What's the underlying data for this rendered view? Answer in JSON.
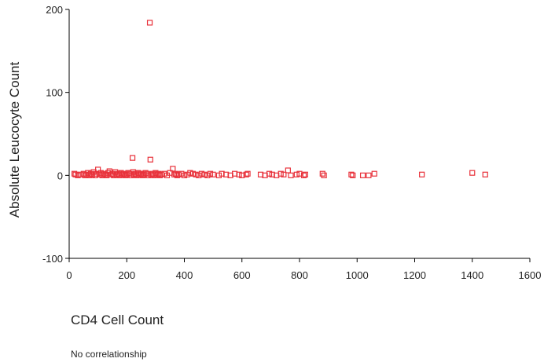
{
  "chart_data": {
    "type": "scatter",
    "title": "",
    "xlabel": "CD4 Cell Count",
    "ylabel": "Absolute Leucocyte Count",
    "xlim": [
      0,
      1600
    ],
    "ylim": [
      -100,
      200
    ],
    "xticks": [
      0,
      200,
      400,
      600,
      800,
      1000,
      1200,
      1400,
      1600
    ],
    "yticks": [
      -100,
      0,
      100,
      200
    ],
    "grid": false,
    "marker": "hollow-square",
    "color": "#e8313a",
    "points": [
      [
        18,
        2
      ],
      [
        22,
        1
      ],
      [
        30,
        0
      ],
      [
        40,
        1
      ],
      [
        50,
        2
      ],
      [
        55,
        0
      ],
      [
        60,
        1
      ],
      [
        65,
        3
      ],
      [
        70,
        0
      ],
      [
        75,
        2
      ],
      [
        80,
        1
      ],
      [
        85,
        4
      ],
      [
        90,
        0
      ],
      [
        95,
        2
      ],
      [
        100,
        7
      ],
      [
        105,
        1
      ],
      [
        110,
        3
      ],
      [
        115,
        0
      ],
      [
        120,
        2
      ],
      [
        125,
        1
      ],
      [
        130,
        0
      ],
      [
        135,
        3
      ],
      [
        140,
        5
      ],
      [
        145,
        1
      ],
      [
        150,
        2
      ],
      [
        155,
        0
      ],
      [
        160,
        4
      ],
      [
        165,
        1
      ],
      [
        170,
        2
      ],
      [
        175,
        0
      ],
      [
        180,
        3
      ],
      [
        185,
        1
      ],
      [
        190,
        2
      ],
      [
        195,
        0
      ],
      [
        200,
        1
      ],
      [
        205,
        3
      ],
      [
        210,
        2
      ],
      [
        215,
        0
      ],
      [
        220,
        21
      ],
      [
        222,
        4
      ],
      [
        225,
        1
      ],
      [
        230,
        2
      ],
      [
        235,
        0
      ],
      [
        240,
        3
      ],
      [
        245,
        1
      ],
      [
        250,
        2
      ],
      [
        255,
        0
      ],
      [
        260,
        1
      ],
      [
        265,
        3
      ],
      [
        270,
        2
      ],
      [
        275,
        0
      ],
      [
        280,
        184
      ],
      [
        282,
        19
      ],
      [
        285,
        1
      ],
      [
        290,
        2
      ],
      [
        295,
        0
      ],
      [
        300,
        3
      ],
      [
        305,
        1
      ],
      [
        310,
        2
      ],
      [
        315,
        0
      ],
      [
        320,
        1
      ],
      [
        330,
        2
      ],
      [
        340,
        0
      ],
      [
        350,
        3
      ],
      [
        360,
        8
      ],
      [
        365,
        1
      ],
      [
        370,
        2
      ],
      [
        375,
        0
      ],
      [
        380,
        1
      ],
      [
        390,
        2
      ],
      [
        400,
        0
      ],
      [
        410,
        1
      ],
      [
        420,
        3
      ],
      [
        430,
        2
      ],
      [
        440,
        1
      ],
      [
        450,
        0
      ],
      [
        460,
        2
      ],
      [
        470,
        1
      ],
      [
        480,
        0
      ],
      [
        490,
        2
      ],
      [
        500,
        1
      ],
      [
        520,
        0
      ],
      [
        530,
        2
      ],
      [
        545,
        1
      ],
      [
        560,
        0
      ],
      [
        575,
        2
      ],
      [
        590,
        1
      ],
      [
        600,
        0
      ],
      [
        615,
        1
      ],
      [
        620,
        2
      ],
      [
        665,
        1
      ],
      [
        680,
        0
      ],
      [
        695,
        2
      ],
      [
        705,
        1
      ],
      [
        720,
        0
      ],
      [
        735,
        2
      ],
      [
        745,
        1
      ],
      [
        760,
        6
      ],
      [
        770,
        0
      ],
      [
        790,
        1
      ],
      [
        800,
        2
      ],
      [
        815,
        0
      ],
      [
        820,
        1
      ],
      [
        880,
        2
      ],
      [
        885,
        0
      ],
      [
        980,
        1
      ],
      [
        985,
        0
      ],
      [
        1020,
        0
      ],
      [
        1040,
        0
      ],
      [
        1060,
        2
      ],
      [
        1225,
        1
      ],
      [
        1400,
        3
      ],
      [
        1445,
        1
      ]
    ],
    "annotations": [
      "No correlationship"
    ]
  }
}
